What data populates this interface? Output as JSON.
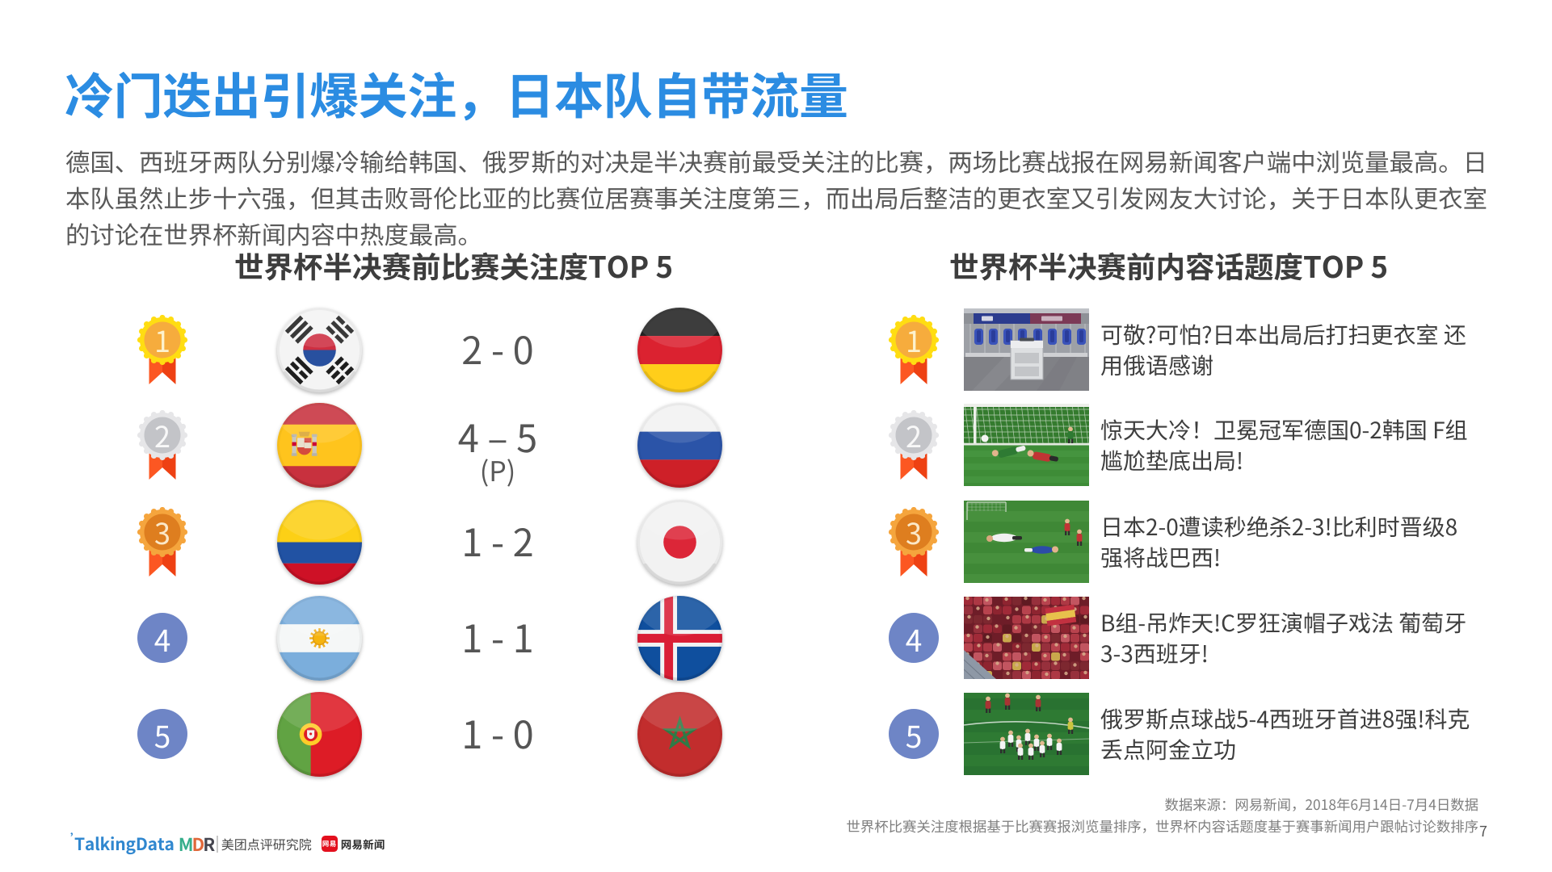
{
  "slide": {
    "title": "冷门迭出引爆关注，日本队自带流量",
    "intro_lines": [
      "德国、西班牙两队分别爆冷输给韩国、俄罗斯的对决是半决赛前最受关注的比赛，两场比赛战报在网易新闻客户端中浏览量最高。日",
      "本队虽然止步十六强，但其击败哥伦比亚的比赛位居赛事关注度第三，而出局后整洁的更衣室又引发网友大讨论，关于日本队更衣室",
      "的讨论在世界杯新闻内容中热度最高。"
    ],
    "page_number": "7"
  },
  "left_panel": {
    "heading": "世界杯半决赛前比赛关注度TOP 5",
    "rows": [
      {
        "rank": "1",
        "team_a": "south-korea",
        "score": "2 - 0",
        "score_note": "",
        "team_b": "germany",
        "rank_style": "gold-medal"
      },
      {
        "rank": "2",
        "team_a": "spain",
        "score": "4 – 5",
        "score_note": "(P)",
        "team_b": "russia",
        "rank_style": "silver-medal"
      },
      {
        "rank": "3",
        "team_a": "colombia",
        "score": "1 - 2",
        "score_note": "",
        "team_b": "japan",
        "rank_style": "bronze-medal"
      },
      {
        "rank": "4",
        "team_a": "argentina",
        "score": "1 - 1",
        "score_note": "",
        "team_b": "iceland",
        "rank_style": "blue-circle"
      },
      {
        "rank": "5",
        "team_a": "portugal",
        "score": "1 - 0",
        "score_note": "",
        "team_b": "morocco",
        "rank_style": "blue-circle"
      }
    ]
  },
  "right_panel": {
    "heading": "世界杯半决赛前内容话题度TOP 5",
    "rows": [
      {
        "rank": "1",
        "photo": "locker-room",
        "headline_lines": [
          "可敬?可怕?日本出局后打扫更衣室 还",
          "用俄语感谢"
        ],
        "rank_style": "gold-medal"
      },
      {
        "rank": "2",
        "photo": "goal-upset",
        "headline_lines": [
          "惊天大冷！卫冕冠军德国0-2韩国 F组",
          "尴尬垫底出局!"
        ],
        "rank_style": "silver-medal"
      },
      {
        "rank": "3",
        "photo": "players-down",
        "headline_lines": [
          "日本2-0遭读秒绝杀2-3!比利时晋级8",
          "强将战巴西!"
        ],
        "rank_style": "bronze-medal"
      },
      {
        "rank": "4",
        "photo": "red-crowd",
        "headline_lines": [
          "B组-吊炸天!C罗狂演帽子戏法 葡萄牙",
          "3-3西班牙!"
        ],
        "rank_style": "blue-circle"
      },
      {
        "rank": "5",
        "photo": "penalty-celebration",
        "headline_lines": [
          "俄罗斯点球战5-4西班牙首进8强!科克",
          "丢点阿金立功"
        ],
        "rank_style": "blue-circle"
      }
    ]
  },
  "footer": {
    "source_line1": "数据来源：网易新闻，2018年6月14日-7月4日数据",
    "source_line2": "世界杯比赛关注度根据基于比赛赛报浏览量排序，世界杯内容话题度基于赛事新闻用户跟帖讨论数排序",
    "logos": {
      "talkingdata": "TalkingData",
      "mdr": "MDR",
      "mdr_institute": "美团点评研究院",
      "netease_badge": "网易",
      "netease": "网易新闻"
    }
  },
  "colors": {
    "title_blue": "#2B8CE2",
    "body_gray": "#595959",
    "heading_dark": "#3D3D3D",
    "rank_blue_circle": "#6E85C6",
    "medal_ribbon": "#FB4E1C"
  }
}
